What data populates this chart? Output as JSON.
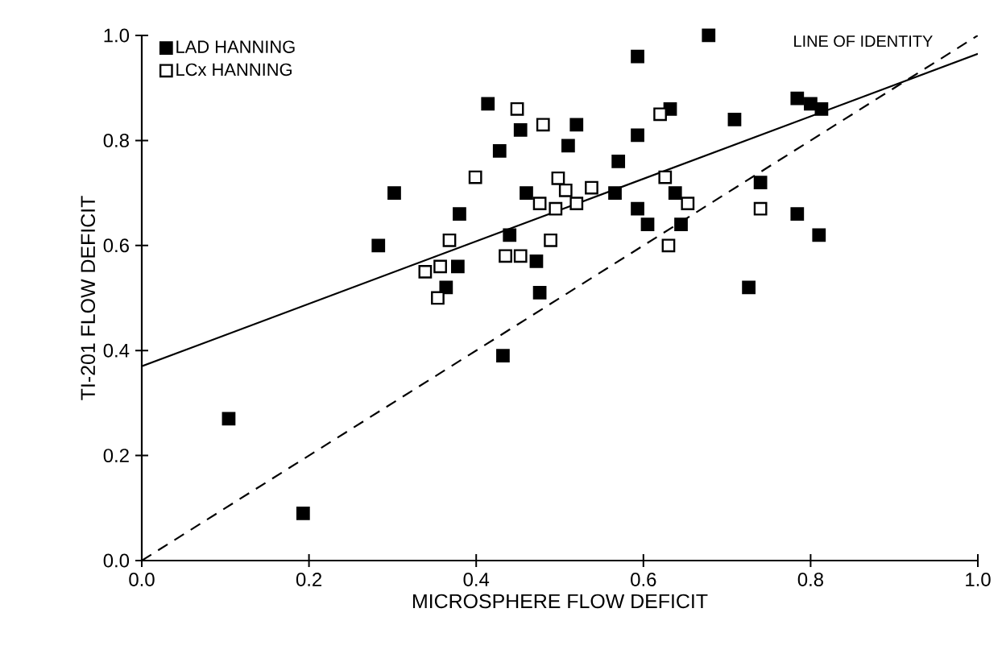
{
  "chart_data": {
    "type": "scatter",
    "xlabel": "MICROSPHERE FLOW DEFICIT",
    "ylabel": "TI-201 FLOW DEFICIT",
    "xlim": [
      0,
      1
    ],
    "ylim": [
      0,
      1
    ],
    "xticks": [
      {
        "value": 0,
        "label": "0.0"
      },
      {
        "value": 0.2,
        "label": "0.2"
      },
      {
        "value": 0.4,
        "label": "0.4"
      },
      {
        "value": 0.6,
        "label": "0.6"
      },
      {
        "value": 0.8,
        "label": "0.8"
      },
      {
        "value": 1,
        "label": "1.0"
      }
    ],
    "yticks": [
      {
        "value": 0,
        "label": "0.0"
      },
      {
        "value": 0.2,
        "label": "0.2"
      },
      {
        "value": 0.4,
        "label": "0.4"
      },
      {
        "value": 0.6,
        "label": "0.6"
      },
      {
        "value": 0.8,
        "label": "0.8"
      },
      {
        "value": 1,
        "label": "1.0"
      }
    ],
    "grid": false,
    "legend": "top left",
    "annotations": [
      {
        "text": "LINE OF IDENTITY",
        "x": 0.98,
        "y": 0.98
      }
    ],
    "series": [
      {
        "name": "LAD HANNING",
        "color": "#000000",
        "marker": "square",
        "x": [
          0.104,
          0.193,
          0.283,
          0.302,
          0.364,
          0.378,
          0.38,
          0.414,
          0.428,
          0.432,
          0.44,
          0.453,
          0.46,
          0.472,
          0.476,
          0.51,
          0.52,
          0.566,
          0.57,
          0.593,
          0.593,
          0.593,
          0.605,
          0.632,
          0.638,
          0.645,
          0.678,
          0.709,
          0.726,
          0.74,
          0.784,
          0.784,
          0.8,
          0.81,
          0.813
        ],
        "values": [
          0.27,
          0.09,
          0.6,
          0.7,
          0.52,
          0.56,
          0.66,
          0.87,
          0.78,
          0.39,
          0.62,
          0.82,
          0.7,
          0.57,
          0.51,
          0.79,
          0.83,
          0.7,
          0.76,
          0.96,
          0.81,
          0.67,
          0.64,
          0.86,
          0.7,
          0.64,
          1.0,
          0.84,
          0.52,
          0.72,
          0.88,
          0.66,
          0.87,
          0.62,
          0.86
        ]
      },
      {
        "name": "LCx HANNING",
        "color": "#ffffff",
        "marker": "square",
        "x": [
          0.339,
          0.354,
          0.357,
          0.368,
          0.399,
          0.435,
          0.449,
          0.453,
          0.476,
          0.48,
          0.489,
          0.495,
          0.498,
          0.507,
          0.52,
          0.538,
          0.62,
          0.626,
          0.63,
          0.653,
          0.74
        ],
        "values": [
          0.55,
          0.5,
          0.56,
          0.61,
          0.73,
          0.58,
          0.86,
          0.58,
          0.68,
          0.83,
          0.61,
          0.67,
          0.728,
          0.705,
          0.68,
          0.71,
          0.85,
          0.73,
          0.6,
          0.68,
          0.67
        ]
      },
      {
        "type": "line",
        "color": "#000000",
        "line_style": "solid",
        "x": [
          0,
          1
        ],
        "values": [
          0.37,
          0.965
        ]
      },
      {
        "type": "line",
        "color": "#000000",
        "line_style": "dashed",
        "x": [
          0,
          1
        ],
        "values": [
          0,
          1
        ]
      }
    ]
  }
}
